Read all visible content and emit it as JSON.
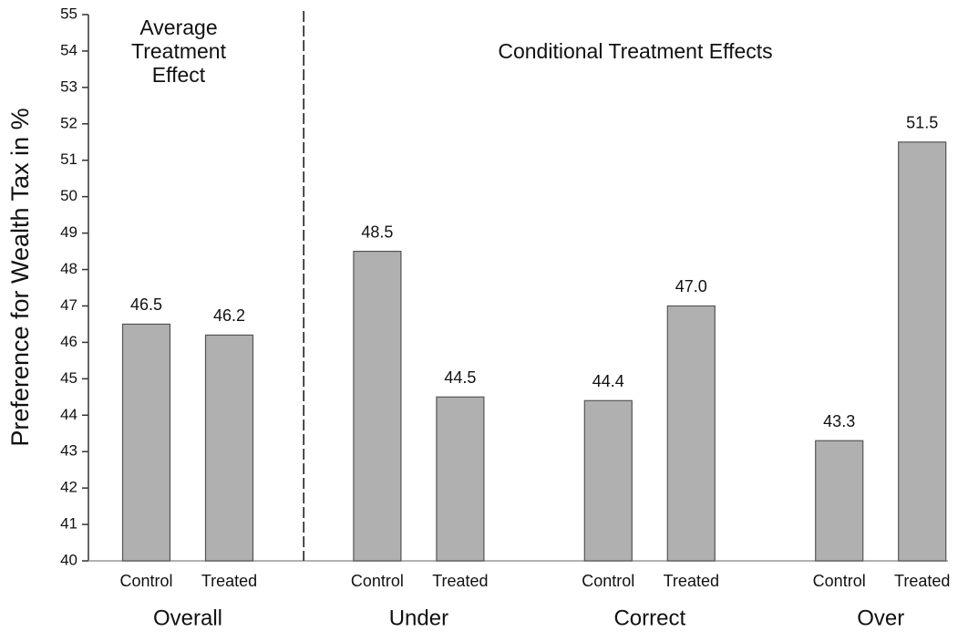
{
  "chart_data": {
    "type": "bar",
    "y_label": "Preference for Wealth Tax in %",
    "annotations": [
      [
        "Average",
        "Treatment",
        "Effect"
      ],
      [
        "Conditional Treatment Effects"
      ]
    ],
    "groups": [
      {
        "name": "Overall",
        "categories": [
          "Control",
          "Treated"
        ],
        "values": [
          46.5,
          46.2
        ],
        "value_labels": [
          "46.5",
          "46.2"
        ]
      },
      {
        "name": "Under",
        "categories": [
          "Control",
          "Treated"
        ],
        "values": [
          48.5,
          44.5
        ],
        "value_labels": [
          "48.5",
          "44.5"
        ]
      },
      {
        "name": "Correct",
        "categories": [
          "Control",
          "Treated"
        ],
        "values": [
          44.4,
          47.0
        ],
        "value_labels": [
          "44.4",
          "47.0"
        ]
      },
      {
        "name": "Over",
        "categories": [
          "Control",
          "Treated"
        ],
        "values": [
          43.3,
          51.5
        ],
        "value_labels": [
          "43.3",
          "51.5"
        ]
      }
    ],
    "color": "#b0b0b0",
    "ylim": [
      40,
      55
    ],
    "yticks": [
      40,
      41,
      42,
      43,
      44,
      45,
      46,
      47,
      48,
      49,
      50,
      51,
      52,
      53,
      54,
      55
    ],
    "grid": false
  }
}
